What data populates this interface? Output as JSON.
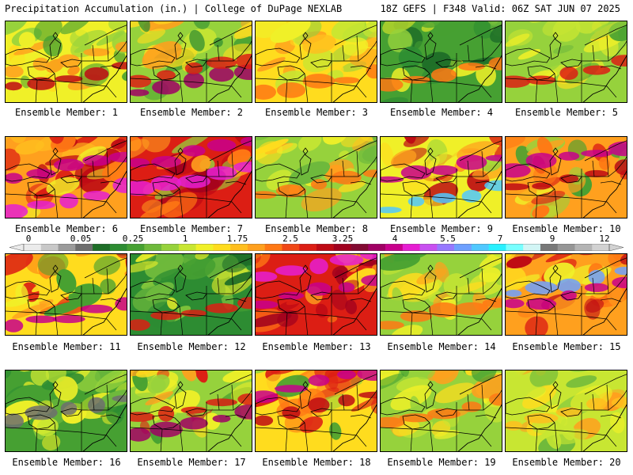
{
  "header": {
    "left": "Precipitation Accumulation (in.) | College of DuPage NEXLAB",
    "right": "18Z GEFS | F348 Valid: 06Z SAT JUN 07 2025"
  },
  "colorbar": {
    "labels": [
      "0",
      "0.05",
      "0.25",
      "1",
      "1.75",
      "2.5",
      "3.25",
      "4",
      "5.5",
      "7",
      "9",
      "12"
    ],
    "colors": [
      "#ebebeb",
      "#c8c8c8",
      "#9b9b9b",
      "#6e6e6e",
      "#1e6e28",
      "#2d8c32",
      "#46a032",
      "#6eb93c",
      "#96d23c",
      "#c8e632",
      "#f0f028",
      "#ffdc1e",
      "#ffbe1e",
      "#ffa01e",
      "#ff7814",
      "#f04614",
      "#dc1e14",
      "#be0a14",
      "#a0001e",
      "#820a32",
      "#a00064",
      "#c8008c",
      "#e61ed2",
      "#c850f0",
      "#9678ff",
      "#6ea0ff",
      "#50c8ff",
      "#28f0ff",
      "#78ffff",
      "#d2f5f5",
      "#787878",
      "#969696",
      "#b4b4b4",
      "#d2d2d2"
    ]
  },
  "members": [
    {
      "label": "Ensemble Member: 1",
      "palette": [
        "#f0f028",
        "#ffdc1e",
        "#ffa01e",
        "#ff7814",
        "#96d23c",
        "#46a032"
      ],
      "bands": [
        {
          "y": 0.78,
          "c": "#be0a14"
        },
        {
          "y": 0.55,
          "c": "#ffa01e"
        }
      ]
    },
    {
      "label": "Ensemble Member: 2",
      "palette": [
        "#96d23c",
        "#c8e632",
        "#ffdc1e",
        "#46a032",
        "#ffa01e",
        "#2d8c32"
      ],
      "bands": [
        {
          "y": 0.82,
          "c": "#a00064"
        },
        {
          "y": 0.7,
          "c": "#dc1e14"
        }
      ]
    },
    {
      "label": "Ensemble Member: 3",
      "palette": [
        "#ffdc1e",
        "#f0f028",
        "#ffbe1e",
        "#ffa01e",
        "#c8e632",
        "#96d23c"
      ],
      "bands": [
        {
          "y": 0.85,
          "c": "#ff7814"
        }
      ]
    },
    {
      "label": "Ensemble Member: 4",
      "palette": [
        "#46a032",
        "#2d8c32",
        "#6eb93c",
        "#96d23c",
        "#f0f028",
        "#1e6e28"
      ],
      "bands": [
        {
          "y": 0.72,
          "c": "#ff7814"
        }
      ]
    },
    {
      "label": "Ensemble Member: 5",
      "palette": [
        "#96d23c",
        "#6eb93c",
        "#f0f028",
        "#c8e632",
        "#ffdc1e",
        "#46a032"
      ],
      "bands": [
        {
          "y": 0.72,
          "c": "#dc1e14"
        }
      ]
    },
    {
      "label": "Ensemble Member: 6",
      "palette": [
        "#ffa01e",
        "#ff7814",
        "#dc1e14",
        "#ffbe1e",
        "#be0a14",
        "#f0f028"
      ],
      "bands": [
        {
          "y": 0.45,
          "c": "#c8008c"
        },
        {
          "y": 0.85,
          "c": "#e61ed2"
        }
      ]
    },
    {
      "label": "Ensemble Member: 7",
      "palette": [
        "#dc1e14",
        "#be0a14",
        "#ff7814",
        "#a0001e",
        "#ffa01e",
        "#96d23c"
      ],
      "bands": [
        {
          "y": 0.3,
          "c": "#c8008c"
        },
        {
          "y": 0.6,
          "c": "#e61ed2"
        }
      ]
    },
    {
      "label": "Ensemble Member: 8",
      "palette": [
        "#96d23c",
        "#c8e632",
        "#f0f028",
        "#6eb93c",
        "#ffdc1e",
        "#ffa01e"
      ],
      "bands": [
        {
          "y": 0.65,
          "c": "#ff7814"
        }
      ]
    },
    {
      "label": "Ensemble Member: 9",
      "palette": [
        "#f0f028",
        "#ffdc1e",
        "#dc1e14",
        "#ffa01e",
        "#be0a14",
        "#96d23c"
      ],
      "bands": [
        {
          "y": 0.5,
          "c": "#c8008c"
        },
        {
          "y": 0.85,
          "c": "#50c8ff"
        }
      ]
    },
    {
      "label": "Ensemble Member: 10",
      "palette": [
        "#ffa01e",
        "#ff7814",
        "#dc1e14",
        "#96d23c",
        "#46a032",
        "#f0f028"
      ],
      "bands": [
        {
          "y": 0.35,
          "c": "#c8008c"
        },
        {
          "y": 0.6,
          "c": "#be0a14"
        }
      ]
    },
    {
      "label": "Ensemble Member: 11",
      "palette": [
        "#ffdc1e",
        "#ffa01e",
        "#ff7814",
        "#f0f028",
        "#46a032",
        "#dc1e14"
      ],
      "bands": [
        {
          "y": 0.85,
          "c": "#c8008c"
        }
      ]
    },
    {
      "label": "Ensemble Member: 12",
      "palette": [
        "#2d8c32",
        "#46a032",
        "#6eb93c",
        "#96d23c",
        "#1e6e28",
        "#f0f028"
      ],
      "bands": [
        {
          "y": 0.8,
          "c": "#dc1e14"
        }
      ]
    },
    {
      "label": "Ensemble Member: 13",
      "palette": [
        "#dc1e14",
        "#ff7814",
        "#be0a14",
        "#ffa01e",
        "#a0001e",
        "#ffdc1e"
      ],
      "bands": [
        {
          "y": 0.25,
          "c": "#e61ed2"
        },
        {
          "y": 0.55,
          "c": "#c8008c"
        }
      ]
    },
    {
      "label": "Ensemble Member: 14",
      "palette": [
        "#96d23c",
        "#c8e632",
        "#f0f028",
        "#46a032",
        "#ffdc1e",
        "#ffa01e"
      ],
      "bands": [
        {
          "y": 0.8,
          "c": "#ff7814"
        }
      ]
    },
    {
      "label": "Ensemble Member: 15",
      "palette": [
        "#ffa01e",
        "#ff7814",
        "#dc1e14",
        "#be0a14",
        "#ffdc1e",
        "#f0f028"
      ],
      "bands": [
        {
          "y": 0.45,
          "c": "#6ea0ff"
        },
        {
          "y": 0.6,
          "c": "#c8008c"
        }
      ]
    },
    {
      "label": "Ensemble Member: 16",
      "palette": [
        "#46a032",
        "#2d8c32",
        "#6eb93c",
        "#96d23c",
        "#f0f028",
        "#c8e632"
      ],
      "bands": [
        {
          "y": 0.55,
          "c": "#6e6e6e"
        }
      ]
    },
    {
      "label": "Ensemble Member: 17",
      "palette": [
        "#96d23c",
        "#f0f028",
        "#ffa01e",
        "#46a032",
        "#dc1e14",
        "#ffdc1e"
      ],
      "bands": [
        {
          "y": 0.75,
          "c": "#a00064"
        },
        {
          "y": 0.55,
          "c": "#dc1e14"
        }
      ]
    },
    {
      "label": "Ensemble Member: 18",
      "palette": [
        "#ffdc1e",
        "#ff7814",
        "#dc1e14",
        "#ffa01e",
        "#96d23c",
        "#46a032"
      ],
      "bands": [
        {
          "y": 0.25,
          "c": "#c8008c"
        },
        {
          "y": 0.55,
          "c": "#be0a14"
        }
      ]
    },
    {
      "label": "Ensemble Member: 19",
      "palette": [
        "#96d23c",
        "#c8e632",
        "#ffdc1e",
        "#ffa01e",
        "#46a032",
        "#f0f028"
      ],
      "bands": [
        {
          "y": 0.6,
          "c": "#ff7814"
        }
      ]
    },
    {
      "label": "Ensemble Member: 20",
      "palette": [
        "#c8e632",
        "#f0f028",
        "#96d23c",
        "#ffdc1e",
        "#6eb93c",
        "#ffa01e"
      ],
      "bands": [
        {
          "y": 0.6,
          "c": "#ffbe1e"
        }
      ]
    }
  ]
}
